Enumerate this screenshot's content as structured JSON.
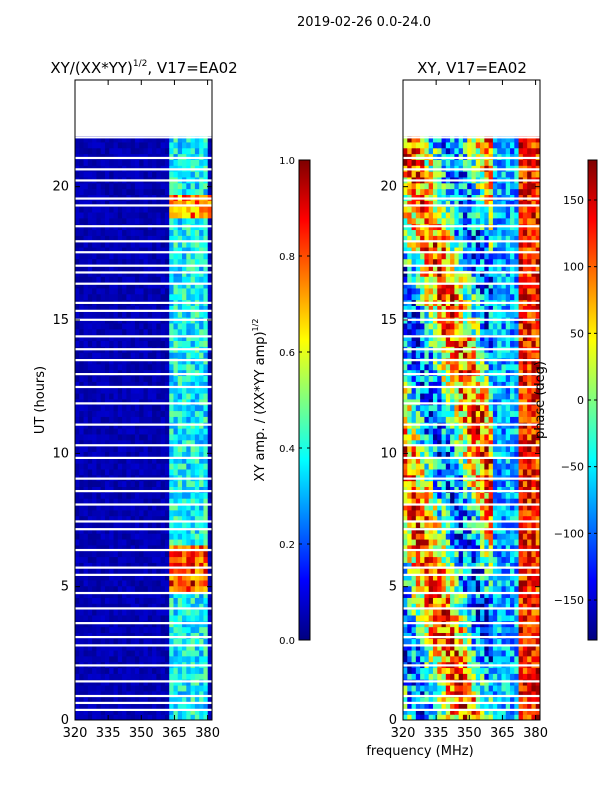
{
  "suptitle": "2019-02-26 0.0-24.0",
  "xlabel_shared": "frequency (MHz)",
  "chart_data": [
    {
      "type": "heatmap",
      "title_main": "XY/(XX*YY)",
      "title_sup": "1/2",
      "title_tail": ", V17=EA02",
      "ylabel": "UT (hours)",
      "xlim": [
        320,
        382
      ],
      "ylim": [
        0,
        24
      ],
      "xticks": [
        "320",
        "335",
        "350",
        "365",
        "380"
      ],
      "yticks": [
        "0",
        "5",
        "10",
        "15",
        "20"
      ],
      "colorbar": {
        "label_main": "XY amp. / (XX*YY amp)",
        "label_sup": "1/2",
        "range": [
          0.0,
          1.0
        ],
        "ticks": [
          "0.0",
          "0.2",
          "0.4",
          "0.6",
          "0.8",
          "1.0"
        ]
      }
    },
    {
      "type": "heatmap",
      "title": "XY, V17=EA02",
      "xlim": [
        320,
        382
      ],
      "ylim": [
        0,
        24
      ],
      "xticks": [
        "320",
        "335",
        "350",
        "365",
        "380"
      ],
      "yticks": [
        "0",
        "5",
        "10",
        "15",
        "20"
      ],
      "colorbar": {
        "label": "phase (deg)",
        "range": [
          -180,
          180
        ],
        "ticks": [
          "-150",
          "-100",
          "-50",
          "0",
          "50",
          "100",
          "150"
        ]
      }
    }
  ],
  "colors": {
    "jet_dark_blue": "#00007f",
    "jet_blue": "#0000ff",
    "jet_cyan": "#00ffff",
    "jet_yellow": "#ffff00",
    "jet_red": "#ff0000",
    "jet_dark_red": "#7f0000"
  }
}
